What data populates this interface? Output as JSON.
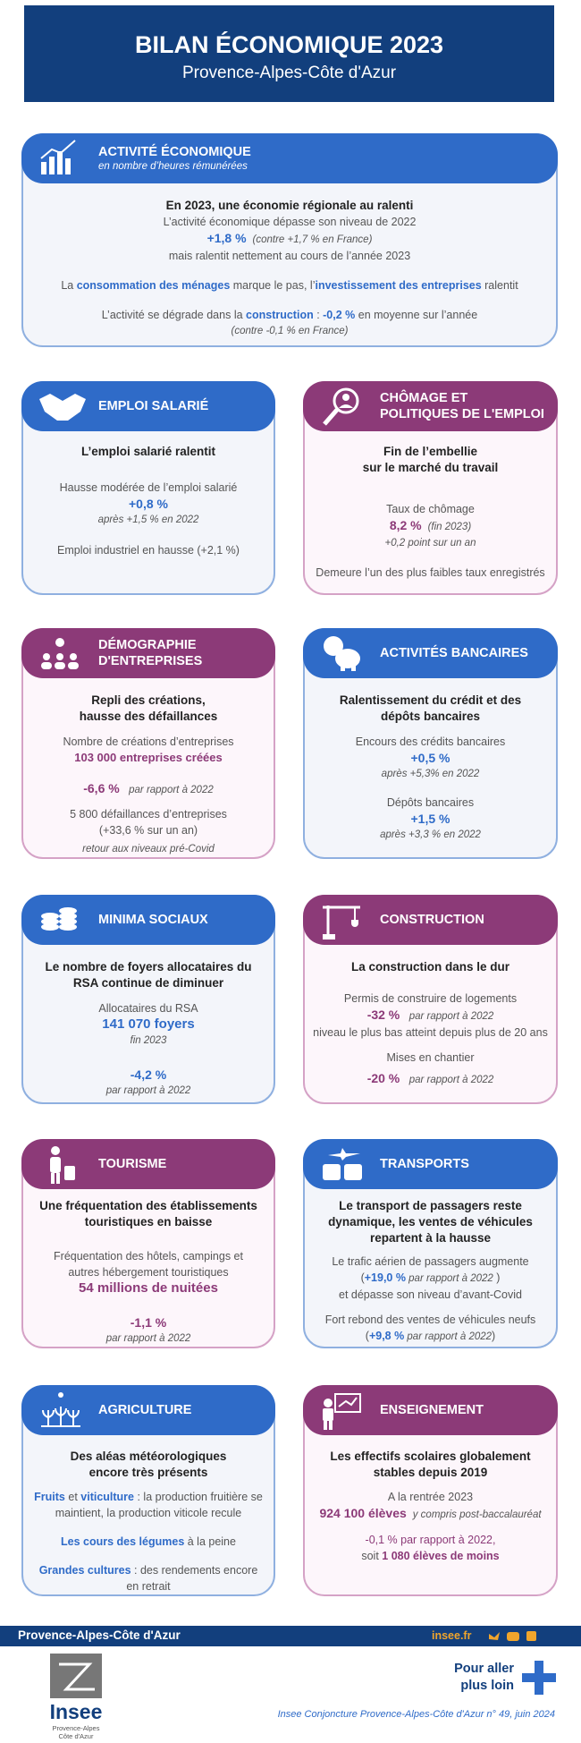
{
  "header": {
    "title": "BILAN ÉCONOMIQUE 2023",
    "subtitle": "Provence-Alpes-Côte d'Azur"
  },
  "cards": [
    {
      "title": [
        "ACTIVITÉ ÉCONOMIQUE"
      ],
      "subtitle": "en nombre d’heures rémunérées",
      "lines": [
        "En 2023, une économie régionale au ralenti",
        "L’activité économique dépasse son niveau de 2022",
        [
          "+1,8 %",
          "(contre +1,7 % en France)"
        ],
        "mais ralentit nettement au cours de l’année 2023",
        [
          "La ",
          "consommation des ménages",
          " marque le pas, l’",
          "investissement des entreprises",
          " ralentit"
        ],
        [
          "L’activité se dégrade dans la ",
          "construction",
          " : ",
          "-0,2 %",
          " en moyenne sur l’année"
        ],
        "(contre -0,1 % en France)"
      ]
    },
    {
      "title": [
        "EMPLOI SALARIÉ"
      ],
      "lines": [
        "L’emploi salarié ralentit",
        "Hausse modérée de l’emploi salarié",
        "+0,8 %",
        "après +1,5 % en 2022",
        "Emploi industriel en hausse (+2,1 %)"
      ]
    },
    {
      "title": [
        "CHÔMAGE ET",
        "POLITIQUES DE L'EMPLOI"
      ],
      "lines": [
        [
          "Fin de l’embellie",
          "sur le marché du travail"
        ],
        "Taux de chômage",
        [
          "8,2 %",
          "(fin 2023)"
        ],
        "+0,2 point sur un an",
        "Demeure l’un des plus faibles taux enregistrés"
      ]
    },
    {
      "title": [
        "DÉMOGRAPHIE",
        "D'ENTREPRISES"
      ],
      "lines": [
        [
          "Repli des créations,",
          "hausse des défaillances"
        ],
        "Nombre de créations d’entreprises",
        "103 000 entreprises créées",
        [
          "-6,6 %",
          "par rapport à 2022"
        ],
        [
          "5 800 défaillances d’entreprises",
          "(+33,6 % sur un an)"
        ],
        "retour aux niveaux pré-Covid"
      ]
    },
    {
      "title": [
        "ACTIVITÉS BANCAIRES"
      ],
      "lines": [
        [
          "Ralentissement du crédit et des",
          "dépôts bancaires"
        ],
        "Encours des crédits bancaires",
        "+0,5 %",
        "après +5,3% en 2022",
        "Dépôts bancaires",
        "+1,5 %",
        "après +3,3 % en 2022"
      ]
    },
    {
      "title": [
        "MINIMA SOCIAUX"
      ],
      "lines": [
        [
          "Le nombre de foyers allocataires du",
          "RSA continue de diminuer"
        ],
        "Allocataires du RSA",
        "141 070 foyers",
        "fin 2023",
        "-4,2 %",
        "par rapport à 2022"
      ]
    },
    {
      "title": [
        "CONSTRUCTION"
      ],
      "lines": [
        "La construction dans le dur",
        "Permis de construire de logements",
        [
          "-32 %",
          "par rapport à 2022"
        ],
        "niveau le plus bas atteint depuis plus de 20 ans",
        "Mises en chantier",
        [
          "-20 %",
          "par rapport à 2022"
        ]
      ]
    },
    {
      "title": [
        "TOURISME"
      ],
      "lines": [
        [
          "Une fréquentation des établissements",
          "touristiques en baisse"
        ],
        [
          "Fréquentation des hôtels, campings et",
          "autres hébergement touristiques"
        ],
        "54 millions de nuitées",
        "-1,1 %",
        "par rapport à 2022"
      ]
    },
    {
      "title": [
        "TRANSPORTS"
      ],
      "lines": [
        [
          "Le transport de passagers reste",
          "dynamique, les ventes de véhicules",
          "repartent à la hausse"
        ],
        "Le trafic aérien de passagers augmente",
        [
          "(",
          "+19,0 %",
          " par rapport à 2022",
          " )"
        ],
        "et dépasse son niveau d’avant-Covid",
        "Fort rebond des ventes de véhicules neufs",
        [
          "(",
          "+9,8 %",
          " par rapport à 2022",
          ")"
        ]
      ]
    },
    {
      "title": [
        "AGRICULTURE"
      ],
      "lines": [
        [
          "Des aléas météorologiques",
          "encore très présents"
        ],
        [
          "Fruits",
          " et ",
          "viticulture",
          " : la production fruitière se"
        ],
        "maintient, la production viticole recule",
        [
          "Les cours des légumes",
          " à la peine"
        ],
        [
          "Grandes cultures",
          " : des rendements encore"
        ],
        "en retrait"
      ]
    },
    {
      "title": [
        "ENSEIGNEMENT"
      ],
      "lines": [
        [
          "Les effectifs scolaires globalement",
          "stables depuis 2019"
        ],
        "A la rentrée 2023",
        [
          "924 100 élèves",
          "y compris post-baccalauréat"
        ],
        "-0,1 % par rapport à 2022,",
        [
          "soit ",
          "1 080 élèves de moins"
        ]
      ]
    }
  ],
  "footer": {
    "region": "Provence-Alpes-Côte d'Azur",
    "site": "insee.fr",
    "more": [
      "Pour aller",
      "plus loin"
    ],
    "reference": "Insee Conjoncture Provence-Alpes-Côte d'Azur n° 49, juin 2024",
    "logo": "Insee",
    "logo_region": [
      "Provence-Alpes",
      "Côte d'Azur"
    ]
  }
}
